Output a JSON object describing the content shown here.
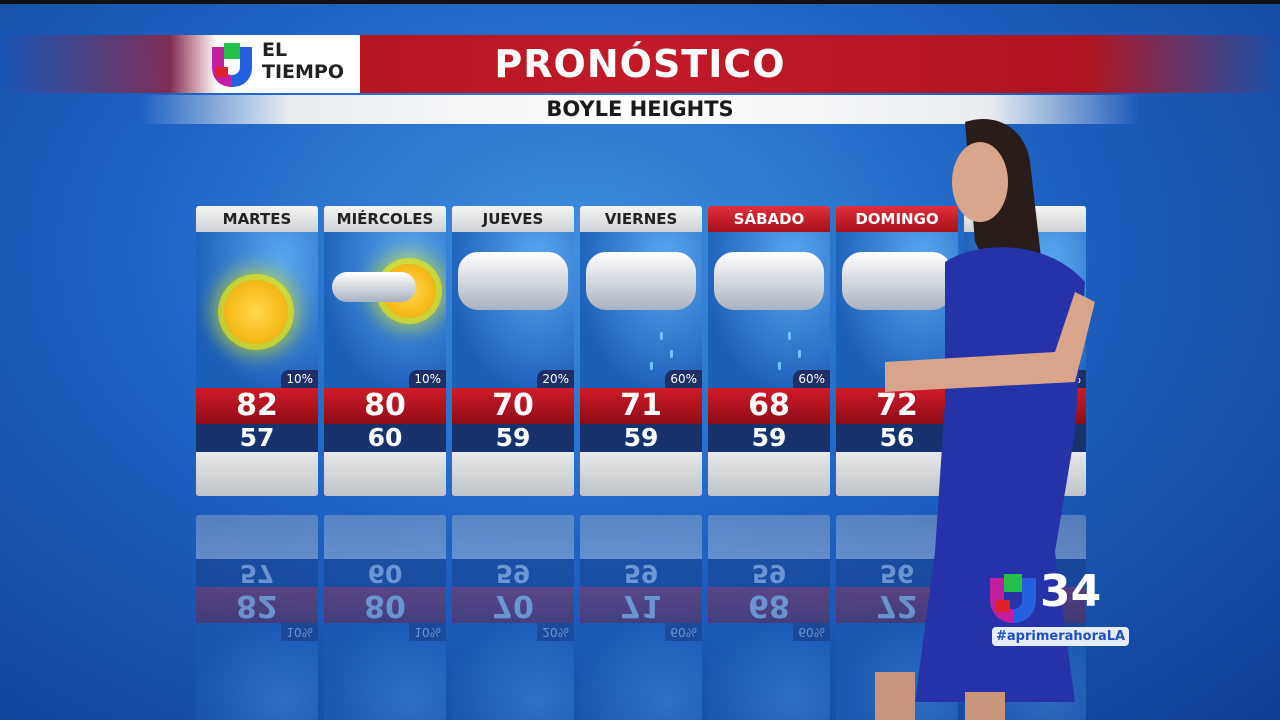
{
  "header": {
    "logo_text_line1": "EL",
    "logo_text_line2": "TIEMPO",
    "title": "PRONÓSTICO",
    "location": "BOYLE HEIGHTS"
  },
  "days": [
    {
      "day": "MARTES",
      "condition": "sunny",
      "precip": "10%",
      "high": "82",
      "low": "57",
      "weekend": false
    },
    {
      "day": "MIÉRCOLES",
      "condition": "partly-cloudy",
      "precip": "10%",
      "high": "80",
      "low": "60",
      "weekend": false
    },
    {
      "day": "JUEVES",
      "condition": "cloudy",
      "precip": "20%",
      "high": "70",
      "low": "59",
      "weekend": false
    },
    {
      "day": "VIERNES",
      "condition": "rain",
      "precip": "60%",
      "high": "71",
      "low": "59",
      "weekend": false
    },
    {
      "day": "SÁBADO",
      "condition": "rain",
      "precip": "60%",
      "high": "68",
      "low": "59",
      "weekend": true
    },
    {
      "day": "DOMINGO",
      "condition": "cloudy",
      "precip": "",
      "high": "72",
      "low": "56",
      "weekend": true
    },
    {
      "day": "",
      "condition": "",
      "precip": "0%",
      "high": "",
      "low": "",
      "weekend": false
    }
  ],
  "station": {
    "channel": "34",
    "hashtag": "#aprimerahoraLA"
  },
  "colors": {
    "red": "#c21a28",
    "navy": "#17336e",
    "background": "#1e63c4"
  }
}
